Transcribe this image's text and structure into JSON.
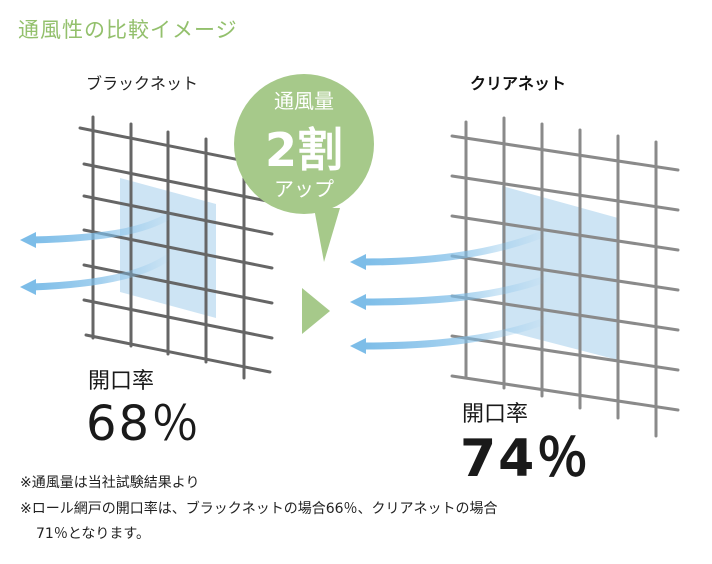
{
  "title": "通風性の比較イメージ",
  "left": {
    "label": "ブラックネット",
    "rate_label": "開口率",
    "rate_value": "68％"
  },
  "right": {
    "label": "クリアネット",
    "rate_label": "開口率",
    "rate_value": "74％"
  },
  "bubble": {
    "line1": "通風量",
    "line2": "2割",
    "line3": "アップ"
  },
  "notes": [
    "※通風量は当社試験結果より",
    "※ロール網戸の開口率は、ブラックネットの場合66％、クリアネットの場合",
    "71％となります。"
  ],
  "colors": {
    "title": "#93c06c",
    "bubble": "#a6c98a",
    "arrow": "#7dbde8",
    "panel": "#c4dff2",
    "black_net": "#666666",
    "clear_net": "#8a8a8a"
  }
}
